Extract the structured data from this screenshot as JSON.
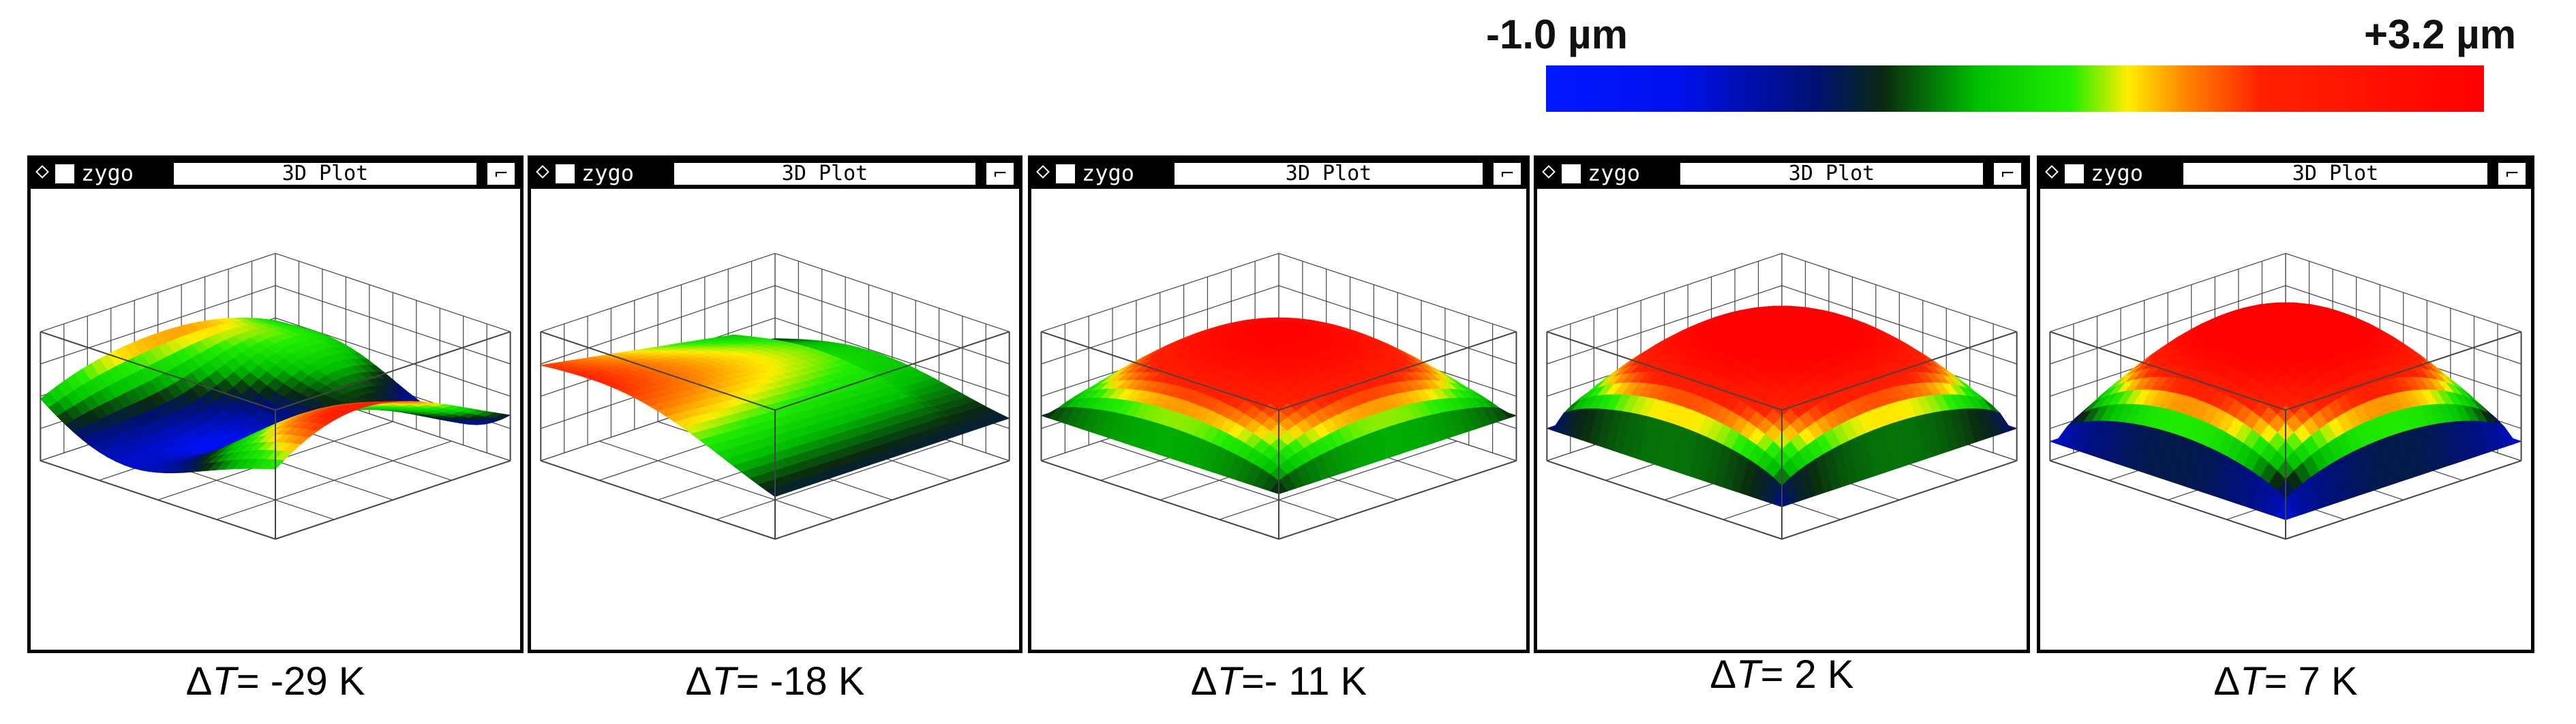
{
  "color_scale": {
    "min_label": "-1.0 µm",
    "max_label": "+3.2 µm",
    "stops": [
      {
        "offset": 0.0,
        "color": "#0018ff"
      },
      {
        "offset": 0.14,
        "color": "#0010ee"
      },
      {
        "offset": 0.29,
        "color": "#001070"
      },
      {
        "offset": 0.36,
        "color": "#0a2a10"
      },
      {
        "offset": 0.46,
        "color": "#00c000"
      },
      {
        "offset": 0.56,
        "color": "#22ee00"
      },
      {
        "offset": 0.62,
        "color": "#ffee00"
      },
      {
        "offset": 0.68,
        "color": "#ff8800"
      },
      {
        "offset": 0.76,
        "color": "#ff2200"
      },
      {
        "offset": 1.0,
        "color": "#ff0000"
      }
    ]
  },
  "window": {
    "brand": "zygo",
    "title": "3D Plot",
    "tool_icon": "pin-tool-icon"
  },
  "panels": [
    {
      "delta_symbol": "Δ",
      "var": "T",
      "value_text": "= -29 K",
      "surface": "saddle"
    },
    {
      "delta_symbol": "Δ",
      "var": "T",
      "value_text": "= -18 K",
      "surface": "tilted"
    },
    {
      "delta_symbol": "Δ",
      "var": "T",
      "value_text": "=- 11 K",
      "surface": "dome-flat"
    },
    {
      "delta_symbol": "Δ",
      "var": "T",
      "value_text": "= 2 K",
      "surface": "dome"
    },
    {
      "delta_symbol": "Δ",
      "var": "T",
      "value_text": "= 7 K",
      "surface": "dome-high"
    }
  ]
}
